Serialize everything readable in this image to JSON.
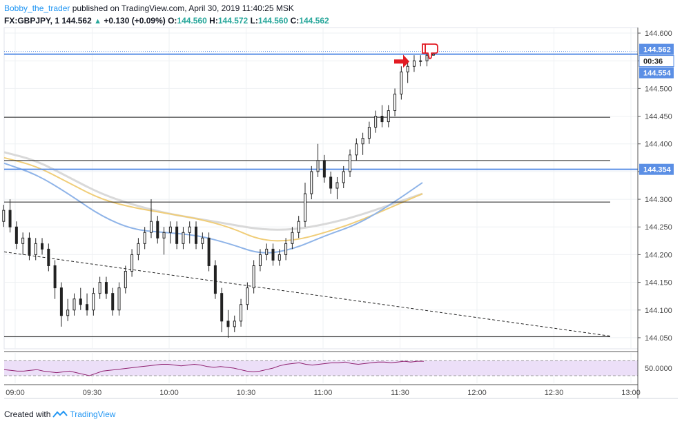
{
  "header": {
    "author": "Bobby_the_trader",
    "published": "published on TradingView.com, April 30, 2019 11:40:25 MSK"
  },
  "symbol_line": {
    "symbol": "FX:GBPJPY, 1",
    "last": "144.562",
    "change": "+0.130 (+0.09%)",
    "o_label": "O:",
    "o": "144.560",
    "h_label": "H:",
    "h": "144.572",
    "l_label": "L:",
    "l": "144.560",
    "c_label": "C:",
    "c": "144.562"
  },
  "footer": {
    "created_with": "Created with",
    "brand": "TradingView"
  },
  "price_tags": {
    "last": "144.562",
    "countdown": "00:36",
    "second": "144.554",
    "level": "144.354"
  },
  "rsi_label": "50.0000",
  "colors": {
    "up": "#26a69a",
    "brand": "#2196f3",
    "hline_blue": "#5b8fe5",
    "ma_blue": "#8fb4e8",
    "ma_gold": "#f0cd78",
    "ma_gray": "#d9d9d9",
    "rsi_line": "#8e1f6f",
    "rsi_band": "#ecdff8",
    "annotation": "#e21b23"
  },
  "chart_data": {
    "type": "candlestick",
    "symbol": "FX:GBPJPY",
    "interval": "1",
    "x_axis": {
      "ticks": [
        "09:00",
        "09:30",
        "10:00",
        "10:30",
        "11:00",
        "11:30",
        "12:00",
        "12:30",
        "13:00"
      ]
    },
    "y_axis": {
      "ticks": [
        "144.600",
        "144.550",
        "144.500",
        "144.450",
        "144.400",
        "144.350",
        "144.300",
        "144.250",
        "144.200",
        "144.150",
        "144.100",
        "144.050"
      ],
      "range": [
        144.03,
        144.61
      ]
    },
    "candles": [
      [
        144.28,
        144.32,
        144.28,
        144.31
      ],
      [
        144.31,
        144.33,
        144.27,
        144.29
      ],
      [
        144.29,
        144.3,
        144.25,
        144.26
      ],
      [
        144.26,
        144.29,
        144.25,
        144.28
      ],
      [
        144.28,
        144.3,
        144.24,
        144.25
      ],
      [
        144.25,
        144.26,
        144.21,
        144.22
      ],
      [
        144.22,
        144.24,
        144.2,
        144.23
      ],
      [
        144.23,
        144.24,
        144.19,
        144.2
      ],
      [
        144.2,
        144.23,
        144.19,
        144.22
      ],
      [
        144.22,
        144.23,
        144.2,
        144.21
      ],
      [
        144.21,
        144.22,
        144.17,
        144.18
      ],
      [
        144.18,
        144.19,
        144.12,
        144.14
      ],
      [
        144.14,
        144.15,
        144.07,
        144.09
      ],
      [
        144.09,
        144.12,
        144.08,
        144.1
      ],
      [
        144.1,
        144.13,
        144.09,
        144.12
      ],
      [
        144.12,
        144.14,
        144.1,
        144.11
      ],
      [
        144.11,
        144.13,
        144.09,
        144.1
      ],
      [
        144.1,
        144.14,
        144.09,
        144.13
      ],
      [
        144.13,
        144.16,
        144.12,
        144.15
      ],
      [
        144.15,
        144.16,
        144.12,
        144.13
      ],
      [
        144.13,
        144.14,
        144.09,
        144.1
      ],
      [
        144.1,
        144.15,
        144.09,
        144.14
      ],
      [
        144.14,
        144.18,
        144.13,
        144.17
      ],
      [
        144.17,
        144.21,
        144.16,
        144.2
      ],
      [
        144.2,
        144.23,
        144.19,
        144.22
      ],
      [
        144.22,
        144.25,
        144.21,
        144.24
      ],
      [
        144.24,
        144.3,
        144.23,
        144.26
      ],
      [
        144.26,
        144.27,
        144.22,
        144.23
      ],
      [
        144.23,
        144.25,
        144.2,
        144.24
      ],
      [
        144.24,
        144.26,
        144.22,
        144.25
      ],
      [
        144.25,
        144.26,
        144.21,
        144.22
      ],
      [
        144.22,
        144.25,
        144.21,
        144.24
      ],
      [
        144.24,
        144.26,
        144.22,
        144.25
      ],
      [
        144.25,
        144.26,
        144.21,
        144.22
      ],
      [
        144.22,
        144.24,
        144.21,
        144.23
      ],
      [
        144.23,
        144.24,
        144.17,
        144.18
      ],
      [
        144.18,
        144.19,
        144.12,
        144.13
      ],
      [
        144.13,
        144.14,
        144.06,
        144.08
      ],
      [
        144.08,
        144.1,
        144.05,
        144.07
      ],
      [
        144.07,
        144.09,
        144.06,
        144.08
      ],
      [
        144.08,
        144.12,
        144.07,
        144.11
      ],
      [
        144.11,
        144.15,
        144.1,
        144.14
      ],
      [
        144.14,
        144.19,
        144.13,
        144.18
      ],
      [
        144.18,
        144.21,
        144.17,
        144.2
      ],
      [
        144.2,
        144.22,
        144.19,
        144.21
      ],
      [
        144.21,
        144.22,
        144.18,
        144.19
      ],
      [
        144.19,
        144.21,
        144.18,
        144.2
      ],
      [
        144.2,
        144.23,
        144.19,
        144.22
      ],
      [
        144.22,
        144.25,
        144.21,
        144.24
      ],
      [
        144.24,
        144.27,
        144.23,
        144.26
      ],
      [
        144.26,
        144.33,
        144.25,
        144.31
      ],
      [
        144.31,
        144.36,
        144.3,
        144.35
      ],
      [
        144.35,
        144.4,
        144.34,
        144.37
      ],
      [
        144.37,
        144.38,
        144.33,
        144.34
      ],
      [
        144.34,
        144.35,
        144.31,
        144.32
      ],
      [
        144.32,
        144.34,
        144.3,
        144.33
      ],
      [
        144.33,
        144.36,
        144.32,
        144.35
      ],
      [
        144.35,
        144.39,
        144.34,
        144.38
      ],
      [
        144.38,
        144.41,
        144.37,
        144.4
      ],
      [
        144.4,
        144.42,
        144.38,
        144.41
      ],
      [
        144.41,
        144.44,
        144.4,
        144.43
      ],
      [
        144.43,
        144.46,
        144.42,
        144.45
      ],
      [
        144.45,
        144.47,
        144.43,
        144.44
      ],
      [
        144.44,
        144.47,
        144.43,
        144.46
      ],
      [
        144.46,
        144.5,
        144.45,
        144.49
      ],
      [
        144.49,
        144.54,
        144.48,
        144.53
      ],
      [
        144.53,
        144.55,
        144.51,
        144.54
      ],
      [
        144.54,
        144.56,
        144.53,
        144.55
      ],
      [
        144.55,
        144.56,
        144.54,
        144.55
      ],
      [
        144.55,
        144.57,
        144.54,
        144.56
      ],
      [
        144.56,
        144.57,
        144.56,
        144.562
      ]
    ],
    "horizontal_lines": [
      {
        "price": 144.562,
        "color": "blue",
        "label": "144.562"
      },
      {
        "price": 144.354,
        "color": "blue",
        "label": "144.354"
      },
      {
        "price": 144.448,
        "color": "black"
      },
      {
        "price": 144.37,
        "color": "black"
      },
      {
        "price": 144.295,
        "color": "black"
      },
      {
        "price": 144.052,
        "color": "black"
      }
    ],
    "trendline": {
      "from": [
        "08:58",
        144.205
      ],
      "to": [
        "12:49",
        144.053
      ],
      "style": "dashed"
    },
    "moving_averages": [
      {
        "color": "gray",
        "points": [
          [
            0,
            144.385
          ],
          [
            10,
            144.37
          ],
          [
            20,
            144.34
          ],
          [
            30,
            144.31
          ],
          [
            40,
            144.29
          ],
          [
            50,
            144.275
          ],
          [
            60,
            144.265
          ],
          [
            70,
            144.255
          ],
          [
            80,
            144.245
          ],
          [
            90,
            144.245
          ],
          [
            100,
            144.255
          ],
          [
            110,
            144.27
          ],
          [
            120,
            144.29
          ],
          [
            130,
            144.31
          ]
        ]
      },
      {
        "color": "gold",
        "points": [
          [
            0,
            144.375
          ],
          [
            10,
            144.36
          ],
          [
            20,
            144.33
          ],
          [
            30,
            144.3
          ],
          [
            40,
            144.285
          ],
          [
            50,
            144.275
          ],
          [
            60,
            144.265
          ],
          [
            70,
            144.25
          ],
          [
            80,
            144.225
          ],
          [
            90,
            144.225
          ],
          [
            100,
            144.24
          ],
          [
            110,
            144.26
          ],
          [
            120,
            144.285
          ],
          [
            130,
            144.31
          ]
        ]
      },
      {
        "color": "blue",
        "points": [
          [
            0,
            144.365
          ],
          [
            10,
            144.345
          ],
          [
            20,
            144.31
          ],
          [
            30,
            144.27
          ],
          [
            40,
            144.245
          ],
          [
            50,
            144.24
          ],
          [
            60,
            144.235
          ],
          [
            70,
            144.22
          ],
          [
            80,
            144.2
          ],
          [
            90,
            144.21
          ],
          [
            100,
            144.235
          ],
          [
            110,
            144.255
          ],
          [
            120,
            144.29
          ],
          [
            130,
            144.33
          ]
        ]
      }
    ],
    "rsi": {
      "midline": 50,
      "values": [
        48,
        47,
        46,
        46,
        47,
        48,
        46,
        45,
        44,
        45,
        46,
        44,
        42,
        40,
        43,
        46,
        47,
        48,
        49,
        50,
        51,
        52,
        53,
        54,
        55,
        55,
        54,
        53,
        54,
        55,
        54,
        52,
        51,
        52,
        51,
        50,
        48,
        46,
        45,
        46,
        48,
        50,
        53,
        55,
        56,
        57,
        55,
        54,
        55,
        56,
        57,
        57,
        58,
        56,
        55,
        56,
        57,
        58,
        58,
        57,
        58,
        59,
        58,
        59,
        59
      ]
    }
  }
}
